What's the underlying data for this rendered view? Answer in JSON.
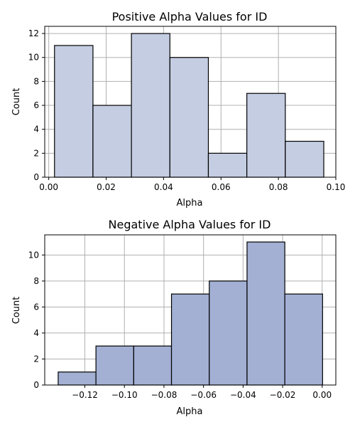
{
  "chart_data": [
    {
      "type": "bar",
      "title": "Positive Alpha Values for ID",
      "xlabel": "Alpha",
      "ylabel": "Count",
      "bin_edges": [
        0.002,
        0.0154,
        0.0288,
        0.0422,
        0.0556,
        0.069,
        0.0824,
        0.0958
      ],
      "values": [
        11,
        6,
        12,
        10,
        2,
        7,
        3
      ],
      "xlim": [
        -0.0014,
        0.1
      ],
      "ylim": [
        0,
        12.6
      ],
      "xticks": [
        0.0,
        0.02,
        0.04,
        0.06,
        0.08,
        0.1
      ],
      "xtick_labels": [
        "0.00",
        "0.02",
        "0.04",
        "0.06",
        "0.08",
        "0.10"
      ],
      "yticks": [
        0,
        2,
        4,
        6,
        8,
        10,
        12
      ],
      "ytick_labels": [
        "0",
        "2",
        "4",
        "6",
        "8",
        "10",
        "12"
      ],
      "color": "#c4cde2",
      "grid": true
    },
    {
      "type": "bar",
      "title": "Negative Alpha Values for ID",
      "xlabel": "Alpha",
      "ylabel": "Count",
      "bin_edges": [
        -0.1335,
        -0.1144,
        -0.0953,
        -0.0762,
        -0.0571,
        -0.038,
        -0.0189,
        0.0002
      ],
      "values": [
        1,
        3,
        3,
        7,
        8,
        11,
        7
      ],
      "xlim": [
        -0.1403,
        0.0069
      ],
      "ylim": [
        0,
        11.55
      ],
      "xticks": [
        -0.12,
        -0.1,
        -0.08,
        -0.06,
        -0.04,
        -0.02,
        0.0
      ],
      "xtick_labels": [
        "−0.12",
        "−0.10",
        "−0.08",
        "−0.06",
        "−0.04",
        "−0.02",
        "0.00"
      ],
      "yticks": [
        0,
        2,
        4,
        6,
        8,
        10
      ],
      "ytick_labels": [
        "0",
        "2",
        "4",
        "6",
        "8",
        "10"
      ],
      "color": "#a3b0d4",
      "grid": true
    }
  ]
}
